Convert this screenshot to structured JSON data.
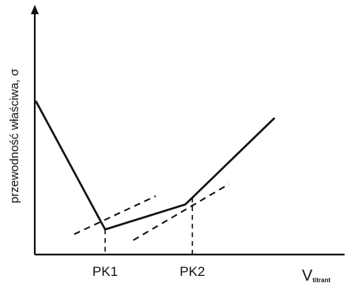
{
  "chart_data": {
    "type": "line",
    "title": "",
    "ylabel": "przewodność właściwa, σ",
    "xlabel": "V",
    "xlabel_subscript": "titrant",
    "xlim": [
      0,
      10
    ],
    "ylim": [
      0,
      10
    ],
    "grid": false,
    "series": [
      {
        "x": [
          0.05,
          2.5,
          5.35,
          8.5
        ],
        "y": [
          6.4,
          1.05,
          2.1,
          5.7
        ]
      }
    ],
    "tangents": [
      {
        "x": [
          1.4,
          4.3
        ],
        "y": [
          0.85,
          2.45
        ]
      },
      {
        "x": [
          3.5,
          6.9
        ],
        "y": [
          0.6,
          2.95
        ]
      }
    ],
    "equivalence_points": [
      {
        "label": "PK1",
        "x": 2.5
      },
      {
        "label": "PK2",
        "x": 5.6
      }
    ]
  }
}
